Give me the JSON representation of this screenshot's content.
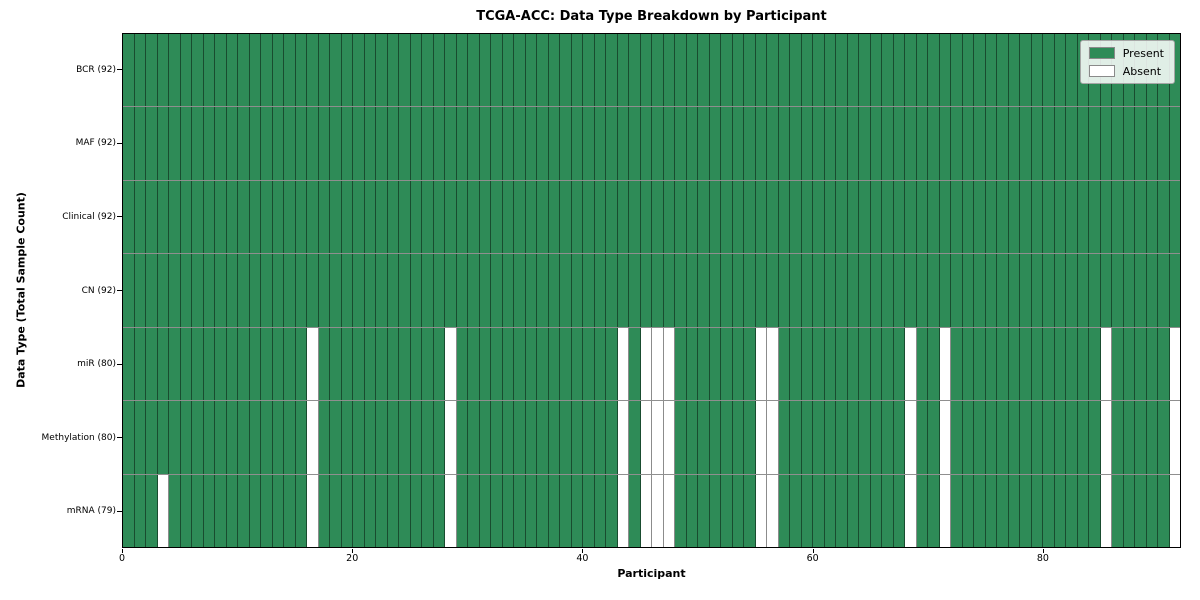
{
  "figure": {
    "title": "TCGA-ACC: Data Type Breakdown by Participant",
    "xlabel": "Participant",
    "ylabel": "Data Type (Total Sample Count)"
  },
  "legend": {
    "items": [
      {
        "label": "Present",
        "color": "#2e8b57"
      },
      {
        "label": "Absent",
        "color": "#ffffff"
      }
    ]
  },
  "chart_data": {
    "type": "heatmap",
    "title": "TCGA-ACC: Data Type Breakdown by Participant",
    "xlabel": "Participant",
    "ylabel": "Data Type (Total Sample Count)",
    "x_ticks": [
      0,
      20,
      40,
      60,
      80
    ],
    "x_range": [
      0,
      92
    ],
    "n_participants": 92,
    "present_color": "#2e8b57",
    "absent_color": "#ffffff",
    "grid": true,
    "legend_position": "upper right",
    "legend_entries": [
      "Present",
      "Absent"
    ],
    "rows": [
      {
        "label": "BCR (92)",
        "data_type": "BCR",
        "present_count": 92,
        "absent_count": 0,
        "absent_participants": []
      },
      {
        "label": "MAF (92)",
        "data_type": "MAF",
        "present_count": 92,
        "absent_count": 0,
        "absent_participants": []
      },
      {
        "label": "Clinical (92)",
        "data_type": "Clinical",
        "present_count": 92,
        "absent_count": 0,
        "absent_participants": []
      },
      {
        "label": "CN (92)",
        "data_type": "CN",
        "present_count": 92,
        "absent_count": 0,
        "absent_participants": []
      },
      {
        "label": "miR (80)",
        "data_type": "miR",
        "present_count": 80,
        "absent_count": 12,
        "absent_participants": [
          16,
          28,
          43,
          45,
          46,
          47,
          55,
          56,
          68,
          71,
          85,
          91
        ]
      },
      {
        "label": "Methylation (80)",
        "data_type": "Methylation",
        "present_count": 80,
        "absent_count": 12,
        "absent_participants": [
          16,
          28,
          43,
          45,
          46,
          47,
          55,
          56,
          68,
          71,
          85,
          91
        ]
      },
      {
        "label": "mRNA (79)",
        "data_type": "mRNA",
        "present_count": 79,
        "absent_count": 13,
        "absent_participants": [
          3,
          16,
          28,
          43,
          45,
          46,
          47,
          55,
          56,
          68,
          71,
          85,
          91
        ]
      }
    ]
  }
}
